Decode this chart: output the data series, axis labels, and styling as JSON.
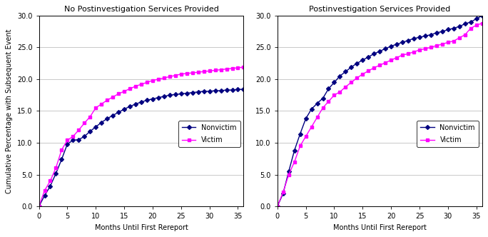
{
  "title_left": "No Postinvestigation Services Provided",
  "title_right": "Postinvestigation Services Provided",
  "xlabel": "Months Until First Rereport",
  "ylabel": "Cumulative Percentage with Subsequent Event",
  "xlim": [
    0,
    36
  ],
  "ylim": [
    0.0,
    30.0
  ],
  "yticks": [
    0.0,
    5.0,
    10.0,
    15.0,
    20.0,
    25.0,
    30.0
  ],
  "xticks": [
    0,
    5,
    10,
    15,
    20,
    25,
    30,
    35
  ],
  "nonvictim_color": "#000080",
  "victim_color": "#FF00FF",
  "background_color": "#ffffff",
  "legend_nonvictim": "Nonvictim",
  "legend_victim": "Victim",
  "left_nonvictim_x": [
    0,
    1,
    2,
    3,
    4,
    5,
    6,
    7,
    8,
    9,
    10,
    11,
    12,
    13,
    14,
    15,
    16,
    17,
    18,
    19,
    20,
    21,
    22,
    23,
    24,
    25,
    26,
    27,
    28,
    29,
    30,
    31,
    32,
    33,
    34,
    35,
    36
  ],
  "left_nonvictim_y": [
    0.0,
    1.7,
    3.2,
    5.2,
    7.4,
    9.8,
    10.4,
    10.5,
    11.0,
    11.8,
    12.5,
    13.2,
    13.8,
    14.3,
    14.8,
    15.3,
    15.7,
    16.1,
    16.4,
    16.7,
    16.9,
    17.1,
    17.3,
    17.5,
    17.6,
    17.7,
    17.8,
    17.9,
    18.0,
    18.1,
    18.1,
    18.2,
    18.2,
    18.3,
    18.3,
    18.4,
    18.4
  ],
  "left_victim_x": [
    0,
    1,
    2,
    3,
    4,
    5,
    6,
    7,
    8,
    9,
    10,
    11,
    12,
    13,
    14,
    15,
    16,
    17,
    18,
    19,
    20,
    21,
    22,
    23,
    24,
    25,
    26,
    27,
    28,
    29,
    30,
    31,
    32,
    33,
    34,
    35,
    36
  ],
  "left_victim_y": [
    0.0,
    2.5,
    4.0,
    6.1,
    8.9,
    10.4,
    11.0,
    12.0,
    13.1,
    14.1,
    15.5,
    16.1,
    16.7,
    17.2,
    17.7,
    18.1,
    18.5,
    18.9,
    19.2,
    19.5,
    19.8,
    20.0,
    20.2,
    20.4,
    20.6,
    20.8,
    20.9,
    21.0,
    21.1,
    21.2,
    21.3,
    21.4,
    21.5,
    21.6,
    21.7,
    21.8,
    21.9
  ],
  "right_nonvictim_x": [
    0,
    1,
    2,
    3,
    4,
    5,
    6,
    7,
    8,
    9,
    10,
    11,
    12,
    13,
    14,
    15,
    16,
    17,
    18,
    19,
    20,
    21,
    22,
    23,
    24,
    25,
    26,
    27,
    28,
    29,
    30,
    31,
    32,
    33,
    34,
    35,
    36
  ],
  "right_nonvictim_y": [
    0.0,
    2.0,
    5.5,
    8.8,
    11.4,
    13.8,
    15.3,
    16.2,
    17.0,
    18.5,
    19.5,
    20.5,
    21.2,
    21.9,
    22.5,
    23.0,
    23.5,
    24.0,
    24.4,
    24.8,
    25.2,
    25.5,
    25.8,
    26.1,
    26.4,
    26.6,
    26.8,
    27.0,
    27.3,
    27.5,
    27.8,
    28.0,
    28.3,
    28.7,
    29.0,
    29.5,
    30.0
  ],
  "right_victim_x": [
    0,
    1,
    2,
    3,
    4,
    5,
    6,
    7,
    8,
    9,
    10,
    11,
    12,
    13,
    14,
    15,
    16,
    17,
    18,
    19,
    20,
    21,
    22,
    23,
    24,
    25,
    26,
    27,
    28,
    29,
    30,
    31,
    32,
    33,
    34,
    35,
    36
  ],
  "right_victim_y": [
    0.0,
    2.2,
    5.0,
    7.0,
    9.5,
    11.0,
    12.5,
    14.0,
    15.5,
    16.5,
    17.5,
    18.0,
    18.8,
    19.5,
    20.2,
    20.8,
    21.3,
    21.8,
    22.2,
    22.6,
    23.0,
    23.4,
    23.8,
    24.0,
    24.3,
    24.6,
    24.8,
    25.0,
    25.3,
    25.5,
    25.8,
    26.0,
    26.5,
    27.0,
    28.0,
    28.5,
    28.8
  ],
  "title_fontsize": 8,
  "axis_label_fontsize": 7,
  "tick_fontsize": 7,
  "legend_fontsize": 7,
  "linewidth": 1.0,
  "markersize": 3
}
